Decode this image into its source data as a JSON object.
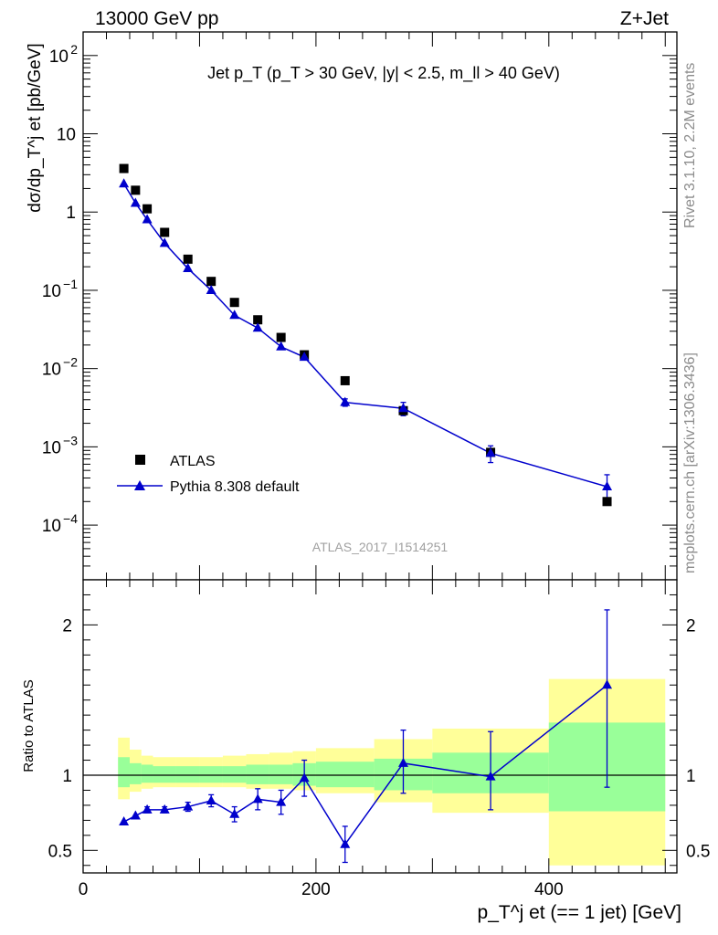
{
  "header": {
    "left": "13000 GeV pp",
    "right": "Z+Jet"
  },
  "side_text": {
    "top": "Rivet 3.1.10,  2.2M events",
    "bottom": "mcplots.cern.ch [arXiv:1306.3436]"
  },
  "colors": {
    "data": "#000000",
    "mc": "#0000cc",
    "band_inner": "#99ff99",
    "band_outer": "#ffff99"
  },
  "chart_data": {
    "type": "scatter",
    "title": "Jet p_T (p_T > 30 GeV, |y| < 2.5, m_ll > 40 GeV)",
    "analysis_tag": "ATLAS_2017_I1514251",
    "xlabel": "p_T^j et (== 1 jet) [GeV]",
    "ylabel": "dσ/dp_T^j et [pb/GeV]",
    "xlim": [
      0,
      510
    ],
    "ylim": [
      2e-05,
      200
    ],
    "yscale": "log",
    "xticks": [
      "0",
      "200",
      "400"
    ],
    "yticks": [
      "10^-4",
      "10^-3",
      "10^-2",
      "10^-1",
      "1",
      "10",
      "10^2"
    ],
    "legend": {
      "position": "bottom-left",
      "entries": [
        "ATLAS",
        "Pythia 8.308 default"
      ]
    },
    "x": [
      35,
      45,
      55,
      70,
      90,
      110,
      130,
      150,
      170,
      190,
      225,
      275,
      350,
      450
    ],
    "series": [
      {
        "name": "ATLAS",
        "values": [
          3.6,
          1.9,
          1.1,
          0.55,
          0.25,
          0.13,
          0.07,
          0.042,
          0.025,
          0.015,
          0.007,
          0.0029,
          0.00085,
          0.0002
        ]
      },
      {
        "name": "Pythia 8.308 default",
        "values": [
          2.3,
          1.3,
          0.8,
          0.4,
          0.19,
          0.1,
          0.048,
          0.033,
          0.019,
          0.014,
          0.0037,
          0.0031,
          0.00083,
          0.00031
        ],
        "err_up": [
          0,
          0,
          0,
          0,
          0,
          0,
          0,
          0,
          0,
          0,
          0.0004,
          0.0006,
          0.0002,
          0.00013
        ],
        "err_down": [
          0,
          0,
          0,
          0,
          0,
          0,
          0,
          0,
          0,
          0,
          0.0004,
          0.0006,
          0.0002,
          0.00013
        ]
      }
    ],
    "ratio": {
      "ylabel": "Ratio to ATLAS",
      "ylim": [
        0.35,
        2.3
      ],
      "yticks": [
        "0.5",
        "1",
        "2"
      ],
      "values": [
        0.69,
        0.73,
        0.77,
        0.77,
        0.79,
        0.83,
        0.74,
        0.84,
        0.82,
        0.98,
        0.54,
        1.08,
        0.99,
        1.6
      ],
      "err_up": [
        0,
        0,
        0.02,
        0.02,
        0.03,
        0.04,
        0.05,
        0.07,
        0.08,
        0.12,
        0.12,
        0.22,
        0.3,
        0.5
      ],
      "err_down": [
        0,
        0,
        0.02,
        0.02,
        0.03,
        0.04,
        0.05,
        0.07,
        0.08,
        0.12,
        0.12,
        0.2,
        0.22,
        0.68
      ],
      "bands": [
        {
          "x0": 30,
          "x1": 40,
          "inner": [
            0.92,
            1.12
          ],
          "outer": [
            0.84,
            1.25
          ]
        },
        {
          "x0": 40,
          "x1": 50,
          "inner": [
            0.94,
            1.08
          ],
          "outer": [
            0.89,
            1.17
          ]
        },
        {
          "x0": 50,
          "x1": 60,
          "inner": [
            0.95,
            1.07
          ],
          "outer": [
            0.91,
            1.13
          ]
        },
        {
          "x0": 60,
          "x1": 80,
          "inner": [
            0.95,
            1.06
          ],
          "outer": [
            0.92,
            1.12
          ]
        },
        {
          "x0": 80,
          "x1": 100,
          "inner": [
            0.95,
            1.06
          ],
          "outer": [
            0.92,
            1.12
          ]
        },
        {
          "x0": 100,
          "x1": 120,
          "inner": [
            0.95,
            1.06
          ],
          "outer": [
            0.92,
            1.12
          ]
        },
        {
          "x0": 120,
          "x1": 140,
          "inner": [
            0.95,
            1.06
          ],
          "outer": [
            0.92,
            1.13
          ]
        },
        {
          "x0": 140,
          "x1": 160,
          "inner": [
            0.94,
            1.07
          ],
          "outer": [
            0.91,
            1.14
          ]
        },
        {
          "x0": 160,
          "x1": 180,
          "inner": [
            0.94,
            1.07
          ],
          "outer": [
            0.91,
            1.15
          ]
        },
        {
          "x0": 180,
          "x1": 200,
          "inner": [
            0.93,
            1.08
          ],
          "outer": [
            0.9,
            1.16
          ]
        },
        {
          "x0": 200,
          "x1": 250,
          "inner": [
            0.92,
            1.09
          ],
          "outer": [
            0.88,
            1.18
          ]
        },
        {
          "x0": 250,
          "x1": 300,
          "inner": [
            0.9,
            1.11
          ],
          "outer": [
            0.82,
            1.24
          ]
        },
        {
          "x0": 300,
          "x1": 400,
          "inner": [
            0.88,
            1.15
          ],
          "outer": [
            0.75,
            1.31
          ]
        },
        {
          "x0": 400,
          "x1": 500,
          "inner": [
            0.76,
            1.35
          ],
          "outer": [
            0.4,
            1.64
          ]
        }
      ]
    }
  }
}
